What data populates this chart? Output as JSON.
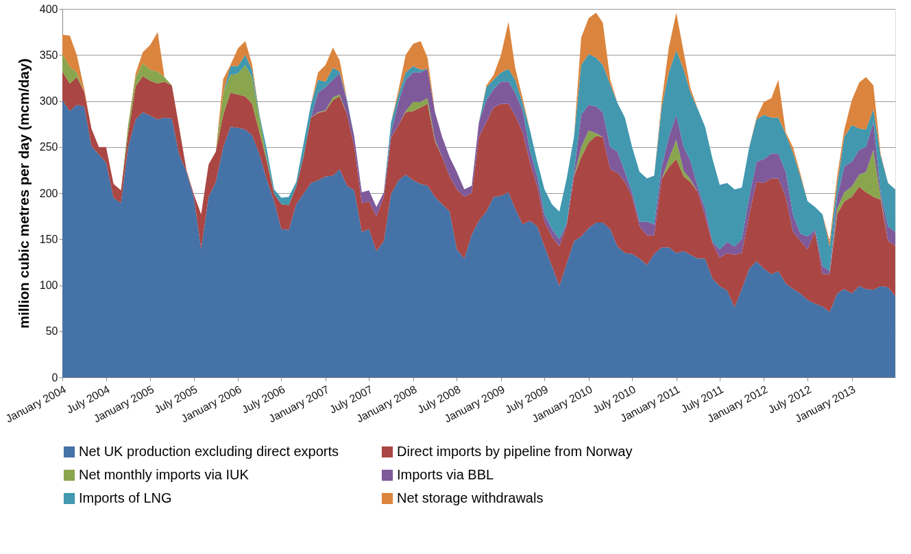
{
  "chart_data": {
    "type": "area",
    "stacked": true,
    "ylabel": "million cubic metres per day (mcm/day)",
    "x": [
      "2004-01",
      "2004-02",
      "2004-03",
      "2004-04",
      "2004-05",
      "2004-06",
      "2004-07",
      "2004-08",
      "2004-09",
      "2004-10",
      "2004-11",
      "2004-12",
      "2005-01",
      "2005-02",
      "2005-03",
      "2005-04",
      "2005-05",
      "2005-06",
      "2005-07",
      "2005-08",
      "2005-09",
      "2005-10",
      "2005-11",
      "2005-12",
      "2006-01",
      "2006-02",
      "2006-03",
      "2006-04",
      "2006-05",
      "2006-06",
      "2006-07",
      "2006-08",
      "2006-09",
      "2006-10",
      "2006-11",
      "2006-12",
      "2007-01",
      "2007-02",
      "2007-03",
      "2007-04",
      "2007-05",
      "2007-06",
      "2007-07",
      "2007-08",
      "2007-09",
      "2007-10",
      "2007-11",
      "2007-12",
      "2008-01",
      "2008-02",
      "2008-03",
      "2008-04",
      "2008-05",
      "2008-06",
      "2008-07",
      "2008-08",
      "2008-09",
      "2008-10",
      "2008-11",
      "2008-12",
      "2009-01",
      "2009-02",
      "2009-03",
      "2009-04",
      "2009-05",
      "2009-06",
      "2009-07",
      "2009-08",
      "2009-09",
      "2009-10",
      "2009-11",
      "2009-12",
      "2010-01",
      "2010-02",
      "2010-03",
      "2010-04",
      "2010-05",
      "2010-06",
      "2010-07",
      "2010-08",
      "2010-09",
      "2010-10",
      "2010-11",
      "2010-12",
      "2011-01",
      "2011-02",
      "2011-03",
      "2011-04",
      "2011-05",
      "2011-06",
      "2011-07",
      "2011-08",
      "2011-09",
      "2011-10",
      "2011-11",
      "2011-12",
      "2012-01",
      "2012-02",
      "2012-03",
      "2012-04",
      "2012-05",
      "2012-06",
      "2012-07",
      "2012-08",
      "2012-09",
      "2012-10",
      "2012-11",
      "2012-12",
      "2013-01",
      "2013-02",
      "2013-03",
      "2013-04",
      "2013-05",
      "2013-06",
      "2013-07"
    ],
    "xlim": [
      "2004-01",
      "2013-07"
    ],
    "xticks": [
      {
        "value": "2004-01",
        "label": "January 2004"
      },
      {
        "value": "2004-07",
        "label": "July 2004"
      },
      {
        "value": "2005-01",
        "label": "January 2005"
      },
      {
        "value": "2005-07",
        "label": "July 2005"
      },
      {
        "value": "2006-01",
        "label": "January 2006"
      },
      {
        "value": "2006-07",
        "label": "July 2006"
      },
      {
        "value": "2007-01",
        "label": "January 2007"
      },
      {
        "value": "2007-07",
        "label": "July 2007"
      },
      {
        "value": "2008-01",
        "label": "January 2008"
      },
      {
        "value": "2008-07",
        "label": "July 2008"
      },
      {
        "value": "2009-01",
        "label": "January 2009"
      },
      {
        "value": "2009-07",
        "label": "July 2009"
      },
      {
        "value": "2010-01",
        "label": "January 2010"
      },
      {
        "value": "2010-07",
        "label": "July 2010"
      },
      {
        "value": "2011-01",
        "label": "January 2011"
      },
      {
        "value": "2011-07",
        "label": "July 2011"
      },
      {
        "value": "2012-01",
        "label": "January 2012"
      },
      {
        "value": "2012-07",
        "label": "July 2012"
      },
      {
        "value": "2013-01",
        "label": "January 2013"
      }
    ],
    "ylim": [
      0,
      400
    ],
    "yticks": [
      0,
      50,
      100,
      150,
      200,
      250,
      300,
      350,
      400
    ],
    "grid": "y",
    "legend": "bottom",
    "series": [
      {
        "name": "Net UK production excluding direct exports",
        "color": "#4572a7",
        "values": [
          301,
          289,
          296,
          294,
          251,
          242,
          233,
          195,
          189,
          250,
          280,
          288,
          284,
          280,
          282,
          281,
          242,
          223,
          196,
          139,
          196,
          212,
          250,
          272,
          271,
          269,
          263,
          242,
          215,
          191,
          161,
          160,
          188,
          199,
          211,
          214,
          218,
          219,
          226,
          208,
          203,
          158,
          161,
          137,
          148,
          199,
          214,
          220,
          214,
          210,
          208,
          196,
          188,
          180,
          139,
          129,
          155,
          170,
          180,
          196,
          197,
          201,
          183,
          166,
          170,
          164,
          142,
          121,
          99,
          123,
          148,
          153,
          162,
          168,
          168,
          161,
          142,
          135,
          134,
          129,
          122,
          134,
          141,
          141,
          135,
          137,
          133,
          129,
          129,
          107,
          99,
          94,
          76,
          96,
          118,
          126,
          118,
          112,
          115,
          102,
          96,
          91,
          84,
          80,
          77,
          71,
          91,
          96,
          91,
          99,
          96,
          95,
          99,
          98,
          88
        ]
      },
      {
        "name": "Direct imports by pipeline from Norway",
        "color": "#aa4643",
        "values": [
          31,
          30,
          30,
          16,
          19,
          8,
          17,
          15,
          14,
          15,
          36,
          39,
          38,
          39,
          39,
          36,
          30,
          2,
          3,
          38,
          35,
          33,
          35,
          37,
          36,
          36,
          34,
          24,
          20,
          8,
          27,
          27,
          19,
          40,
          71,
          73,
          71,
          82,
          79,
          77,
          47,
          31,
          30,
          38,
          48,
          61,
          60,
          68,
          75,
          83,
          89,
          60,
          51,
          38,
          65,
          67,
          45,
          91,
          97,
          97,
          100,
          96,
          101,
          100,
          64,
          43,
          27,
          32,
          43,
          41,
          70,
          86,
          93,
          94,
          93,
          65,
          80,
          77,
          62,
          35,
          32,
          20,
          74,
          87,
          102,
          81,
          79,
          72,
          46,
          38,
          31,
          41,
          57,
          39,
          59,
          86,
          93,
          104,
          101,
          94,
          62,
          57,
          55,
          78,
          35,
          41,
          86,
          95,
          105,
          108,
          105,
          101,
          94,
          50,
          55
        ]
      },
      {
        "name": "Net monthly imports via IUK",
        "color": "#89a54e",
        "values": [
          19,
          18,
          5,
          0,
          0,
          0,
          0,
          0,
          0,
          9,
          10,
          14,
          12,
          13,
          5,
          0,
          0,
          0,
          0,
          0,
          0,
          0,
          24,
          19,
          23,
          34,
          29,
          16,
          3,
          0,
          0,
          0,
          0,
          0,
          0,
          1,
          1,
          3,
          2,
          0,
          0,
          0,
          0,
          0,
          0,
          0,
          0,
          1,
          10,
          6,
          6,
          2,
          0,
          0,
          0,
          0,
          0,
          0,
          0,
          0,
          0,
          0,
          0,
          0,
          0,
          0,
          0,
          0,
          0,
          0,
          0,
          11,
          13,
          3,
          0,
          0,
          0,
          0,
          0,
          0,
          0,
          0,
          0,
          9,
          21,
          6,
          3,
          0,
          0,
          0,
          0,
          0,
          0,
          0,
          0,
          0,
          0,
          0,
          0,
          0,
          0,
          0,
          0,
          0,
          0,
          0,
          6,
          10,
          11,
          13,
          22,
          51,
          3,
          0,
          0
        ]
      },
      {
        "name": "Imports via BBL",
        "color": "#7e5a9b",
        "values": [
          null,
          null,
          null,
          null,
          null,
          null,
          null,
          null,
          null,
          null,
          null,
          null,
          null,
          null,
          null,
          null,
          null,
          null,
          null,
          null,
          null,
          null,
          null,
          null,
          null,
          null,
          null,
          null,
          null,
          null,
          null,
          null,
          null,
          null,
          0,
          21,
          25,
          19,
          23,
          14,
          11,
          12,
          12,
          10,
          5,
          6,
          25,
          34,
          32,
          32,
          32,
          30,
          22,
          21,
          19,
          8,
          8,
          16,
          24,
          20,
          24,
          24,
          25,
          24,
          13,
          11,
          8,
          8,
          8,
          3,
          5,
          35,
          28,
          29,
          27,
          24,
          23,
          11,
          5,
          5,
          15,
          12,
          13,
          24,
          27,
          26,
          20,
          5,
          8,
          2,
          9,
          12,
          9,
          15,
          19,
          22,
          26,
          27,
          27,
          27,
          19,
          8,
          14,
          2,
          9,
          3,
          13,
          28,
          27,
          27,
          27,
          30,
          5,
          16,
          15
        ]
      },
      {
        "name": "Imports of LNG",
        "color": "#4198af",
        "values": [
          0,
          0,
          0,
          0,
          0,
          0,
          0,
          0,
          0,
          0,
          0,
          0,
          0,
          0,
          0,
          0,
          0,
          0,
          0,
          0,
          0,
          0,
          0,
          10,
          8,
          11,
          8,
          3,
          10,
          5,
          7,
          9,
          5,
          14,
          14,
          14,
          6,
          13,
          2,
          2,
          0,
          0,
          0,
          0,
          0,
          11,
          8,
          8,
          7,
          3,
          0,
          0,
          0,
          0,
          0,
          0,
          0,
          0,
          14,
          10,
          10,
          14,
          14,
          8,
          22,
          16,
          27,
          27,
          30,
          48,
          38,
          54,
          55,
          53,
          51,
          68,
          53,
          59,
          49,
          54,
          47,
          53,
          65,
          70,
          70,
          84,
          74,
          85,
          89,
          90,
          70,
          64,
          62,
          56,
          54,
          46,
          48,
          39,
          39,
          41,
          67,
          62,
          38,
          25,
          56,
          27,
          13,
          32,
          40,
          23,
          19,
          14,
          40,
          47,
          46
        ]
      },
      {
        "name": "Net storage withdrawals",
        "color": "#db843d",
        "values": [
          21,
          34,
          19,
          3,
          0,
          0,
          0,
          0,
          0,
          0,
          4,
          12,
          27,
          43,
          0,
          0,
          0,
          0,
          0,
          0,
          0,
          0,
          15,
          1,
          19,
          15,
          6,
          0,
          0,
          0,
          0,
          0,
          0,
          0,
          0,
          8,
          18,
          22,
          12,
          0,
          0,
          0,
          0,
          0,
          0,
          0,
          5,
          19,
          24,
          31,
          12,
          0,
          0,
          0,
          0,
          0,
          0,
          0,
          2,
          5,
          19,
          51,
          13,
          5,
          0,
          0,
          0,
          0,
          0,
          0,
          0,
          30,
          39,
          49,
          46,
          5,
          0,
          0,
          0,
          0,
          0,
          0,
          6,
          27,
          41,
          19,
          5,
          0,
          0,
          0,
          0,
          0,
          0,
          0,
          0,
          2,
          14,
          21,
          41,
          2,
          6,
          3,
          0,
          0,
          0,
          6,
          9,
          8,
          27,
          50,
          57,
          26,
          2,
          0,
          0
        ]
      }
    ]
  }
}
